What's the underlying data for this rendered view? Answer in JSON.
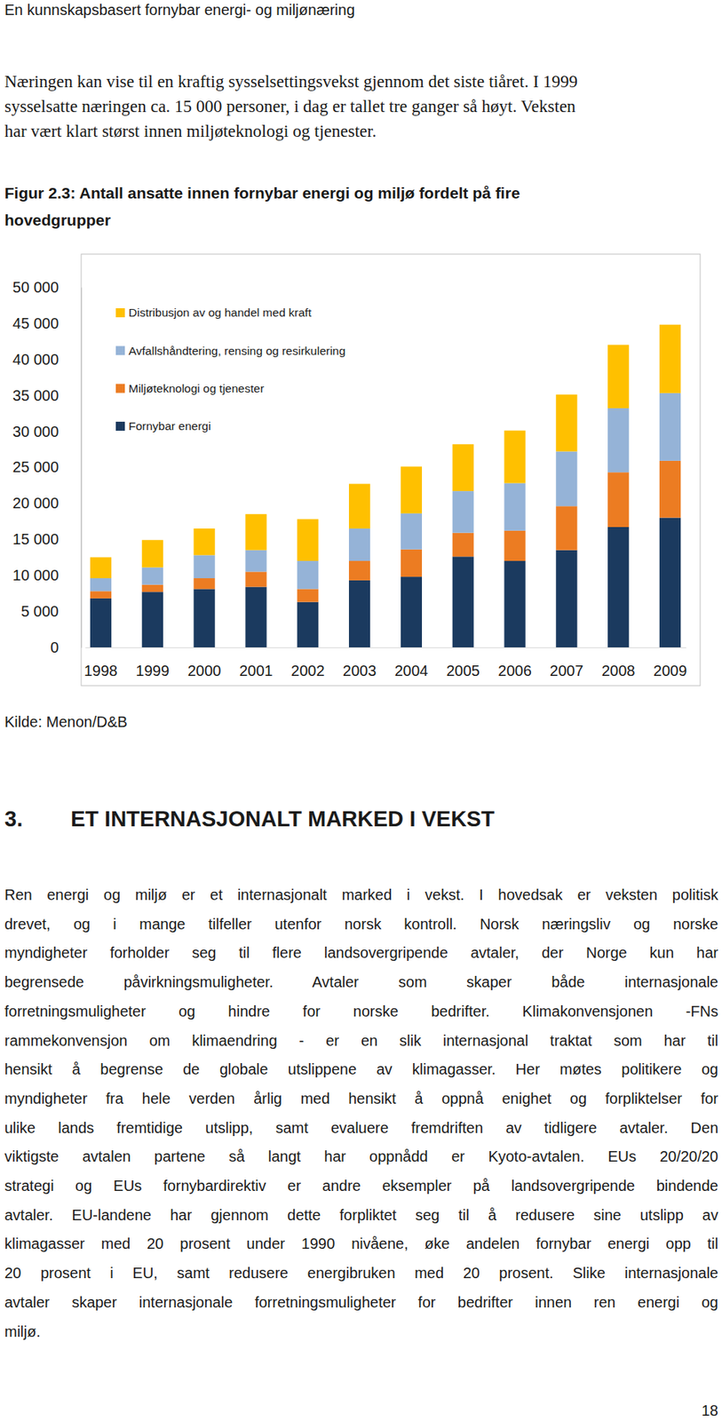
{
  "document": {
    "header": "En kunnskapsbasert fornybar energi- og miljønæring",
    "intro": [
      "Næringen kan vise til en kraftig sysselsettingsvekst gjennom det siste tiåret. I 1999",
      "sysselsatte næringen ca. 15 000 personer, i dag er tallet tre ganger så høyt. Veksten",
      "har vært klart størst innen miljøteknologi og tjenester."
    ],
    "figure_caption": [
      "Figur 2.3: Antall ansatte innen fornybar energi og miljø fordelt på fire",
      "hovedgrupper"
    ],
    "source": "Kilde: Menon/D&B",
    "section_number": "3.",
    "section_title": "ET INTERNASJONALT MARKED I VEKST",
    "section_text": [
      "Ren energi og miljø er et internasjonalt marked i vekst. I hovedsak er veksten politisk",
      "drevet, og i mange tilfeller utenfor norsk kontroll. Norsk næringsliv og norske",
      "myndigheter forholder seg til flere landsovergripende avtaler, der Norge kun har",
      "begrensede påvirkningsmuligheter. Avtaler som skaper både internasjonale",
      "forretningsmuligheter og hindre for norske bedrifter. Klimakonvensjonen -FNs",
      "rammekonvensjon om klimaendring - er en slik internasjonal traktat som har til",
      "hensikt å begrense de globale utslippene av klimagasser. Her møtes politikere og",
      "myndigheter fra hele verden årlig med hensikt å oppnå enighet og forpliktelser for",
      "ulike lands fremtidige utslipp, samt evaluere fremdriften av tidligere avtaler. Den",
      "viktigste avtalen partene så langt har oppnådd er Kyoto-avtalen. EUs 20/20/20",
      "strategi og EUs fornybardirektiv er andre eksempler på landsovergripende bindende",
      "avtaler. EU-landene har gjennom dette forpliktet seg til å redusere sine utslipp av",
      "klimagasser med 20 prosent under 1990 nivåene, øke andelen fornybar energi opp til",
      "20 prosent i EU, samt redusere energibruken med 20 prosent. Slike internasjonale",
      "avtaler skaper internasjonale forretningsmuligheter for bedrifter innen ren energi og",
      "miljø."
    ],
    "page_number": "18"
  },
  "chart_data": {
    "type": "bar",
    "stacked": true,
    "grid": false,
    "legend": "top-left",
    "categories": [
      "1998",
      "1999",
      "2000",
      "2001",
      "2002",
      "2003",
      "2004",
      "2005",
      "2006",
      "2007",
      "2008",
      "2009"
    ],
    "series": [
      {
        "name": "Fornybar energi",
        "color": "#1b3a5f",
        "values": [
          6800,
          7700,
          8100,
          8400,
          6300,
          9300,
          9800,
          12600,
          12000,
          13500,
          16700,
          18000
        ]
      },
      {
        "name": "Miljøteknologi og tjenester",
        "color": "#ec7c22",
        "values": [
          1000,
          1000,
          1500,
          2100,
          1800,
          2700,
          3800,
          3300,
          4200,
          6100,
          7600,
          7900
        ]
      },
      {
        "name": "Avfallshåndtering, rensing og resirkulering",
        "color": "#95b3d7",
        "values": [
          1800,
          2400,
          3200,
          3000,
          3900,
          4500,
          5000,
          5800,
          6600,
          7600,
          8900,
          9400
        ]
      },
      {
        "name": "Distribusjon av og handel med kraft",
        "color": "#ffc000",
        "values": [
          2900,
          3800,
          3700,
          5000,
          5800,
          6200,
          6500,
          6500,
          7300,
          7900,
          8800,
          9500
        ]
      }
    ],
    "ylim": [
      0,
      50000
    ],
    "yticks": [
      0,
      {
        "value": 5000,
        "label": "5 000"
      },
      {
        "value": 10000,
        "label": "10 000"
      },
      {
        "value": 15000,
        "label": "15 000"
      },
      {
        "value": 20000,
        "label": "20 000"
      },
      {
        "value": 25000,
        "label": "25 000"
      },
      {
        "value": 30000,
        "label": "30 000"
      },
      {
        "value": 35000,
        "label": "35 000"
      },
      {
        "value": 40000,
        "label": "40 000"
      },
      {
        "value": 45000,
        "label": "45 000"
      },
      {
        "value": 50000,
        "label": "50 000"
      }
    ]
  }
}
